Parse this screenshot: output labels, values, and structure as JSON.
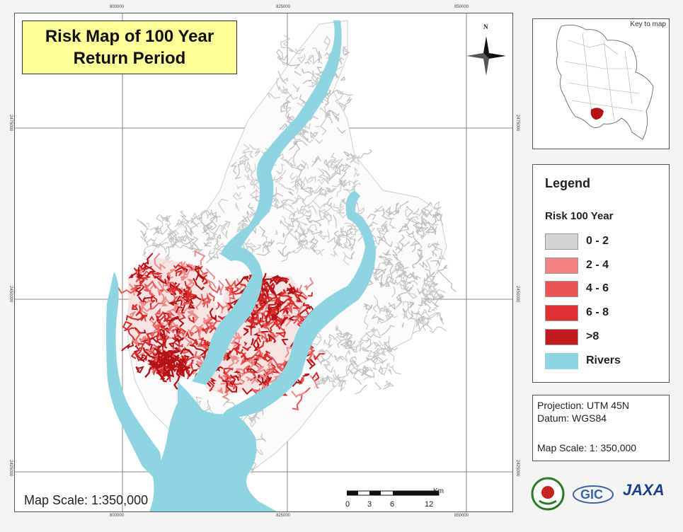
{
  "map": {
    "title_line1": "Risk Map of 100 Year",
    "title_line2": "Return Period",
    "scale_text": "Map Scale: 1:350,000",
    "north_label": "N",
    "grid_labels": {
      "top": [
        "800000",
        "825000",
        "850000"
      ],
      "bottom": [
        "800000",
        "825000",
        "850000"
      ],
      "left": [
        "2475000",
        "2450000",
        "2425000"
      ],
      "right": [
        "2475000",
        "2450000",
        "2425000"
      ]
    },
    "scale_bar": {
      "labels": [
        "0",
        "3",
        "6",
        "12"
      ],
      "unit": "Km"
    },
    "colors": {
      "river": "#8fd5e1",
      "risk_0_2": "#c9c9c9",
      "risk_2_4": "#f08a8a",
      "risk_4_6": "#e85656",
      "risk_6_8": "#d92a2a",
      "risk_gt8": "#b31217"
    }
  },
  "inset": {
    "label": "Key to map"
  },
  "legend": {
    "title": "Legend",
    "subtitle": "Risk 100 Year",
    "items": [
      {
        "label": "0 - 2",
        "color": "#d4d4d4"
      },
      {
        "label": "2 - 4",
        "color": "#f48282"
      },
      {
        "label": "4 - 6",
        "color": "#ec5454"
      },
      {
        "label": "6 - 8",
        "color": "#e03232"
      },
      {
        "label": ">8",
        "color": "#c21a1f"
      },
      {
        "label": "Rivers",
        "color": "#8fd5e1"
      }
    ]
  },
  "projection": {
    "line1": "Projection: UTM 45N",
    "line2": "Datum: WGS84",
    "line3": "Map Scale: 1: 350,000"
  },
  "logos": {
    "gic": "GIC",
    "jaxa": "JAXA"
  }
}
